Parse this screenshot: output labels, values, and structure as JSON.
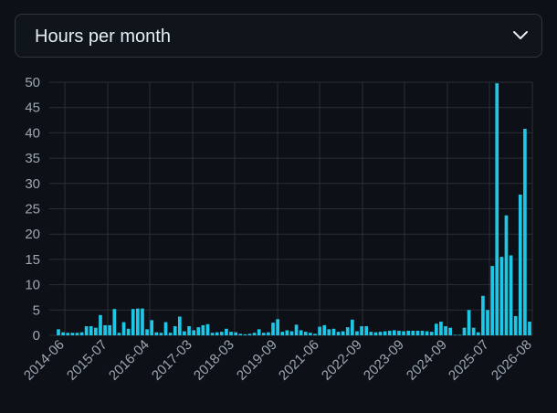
{
  "dropdown": {
    "selected": "Hours per month",
    "icon": "chevron-down-icon"
  },
  "colors": {
    "bar": "#1fc7e6",
    "grid": "#2a2f36",
    "tick_text": "#9da7b3",
    "background": "#0d1117"
  },
  "chart_data": {
    "type": "bar",
    "xlabel": "",
    "ylabel": "",
    "ylim": [
      0,
      50
    ],
    "y_ticks": [
      0,
      5,
      10,
      15,
      20,
      25,
      30,
      35,
      40,
      45,
      50
    ],
    "x_tick_labels": [
      "2014-06",
      "2015-07",
      "2016-04",
      "2017-03",
      "2018-03",
      "2019-09",
      "2021-06",
      "2022-09",
      "2023-09",
      "2024-09",
      "2025-07",
      "2026-08"
    ],
    "grid": true,
    "legend": "none",
    "values": [
      1.2,
      0.6,
      0.5,
      0.5,
      0.5,
      0.6,
      1.8,
      1.8,
      1.5,
      4,
      2,
      2,
      5.2,
      0.5,
      2.6,
      1.3,
      5.2,
      5.3,
      5.3,
      1.2,
      3,
      0.6,
      0.5,
      2.6,
      0.5,
      1.8,
      3.7,
      0.8,
      1.8,
      1,
      1.6,
      2,
      2.2,
      0.5,
      0.6,
      0.7,
      1.3,
      0.7,
      0.6,
      0.3,
      0.2,
      0.3,
      0.5,
      1.2,
      0.5,
      0.6,
      2.5,
      3.2,
      0.7,
      1,
      0.8,
      2.1,
      1,
      0.7,
      0.5,
      0.3,
      1.7,
      2,
      1.2,
      1.3,
      0.7,
      0.8,
      1.6,
      3.1,
      0.8,
      1.8,
      1.8,
      0.7,
      0.6,
      0.7,
      0.8,
      0.9,
      1,
      0.9,
      0.8,
      0.9,
      0.9,
      0.9,
      0.9,
      0.8,
      0.7,
      2.3,
      2.7,
      1.8,
      1.5,
      0.1,
      0.1,
      1.5,
      5,
      1.5,
      0.6,
      7.8,
      5,
      13.7,
      49.8,
      15.5,
      23.7,
      15.8,
      3.8,
      27.8,
      40.8,
      2.7
    ]
  }
}
